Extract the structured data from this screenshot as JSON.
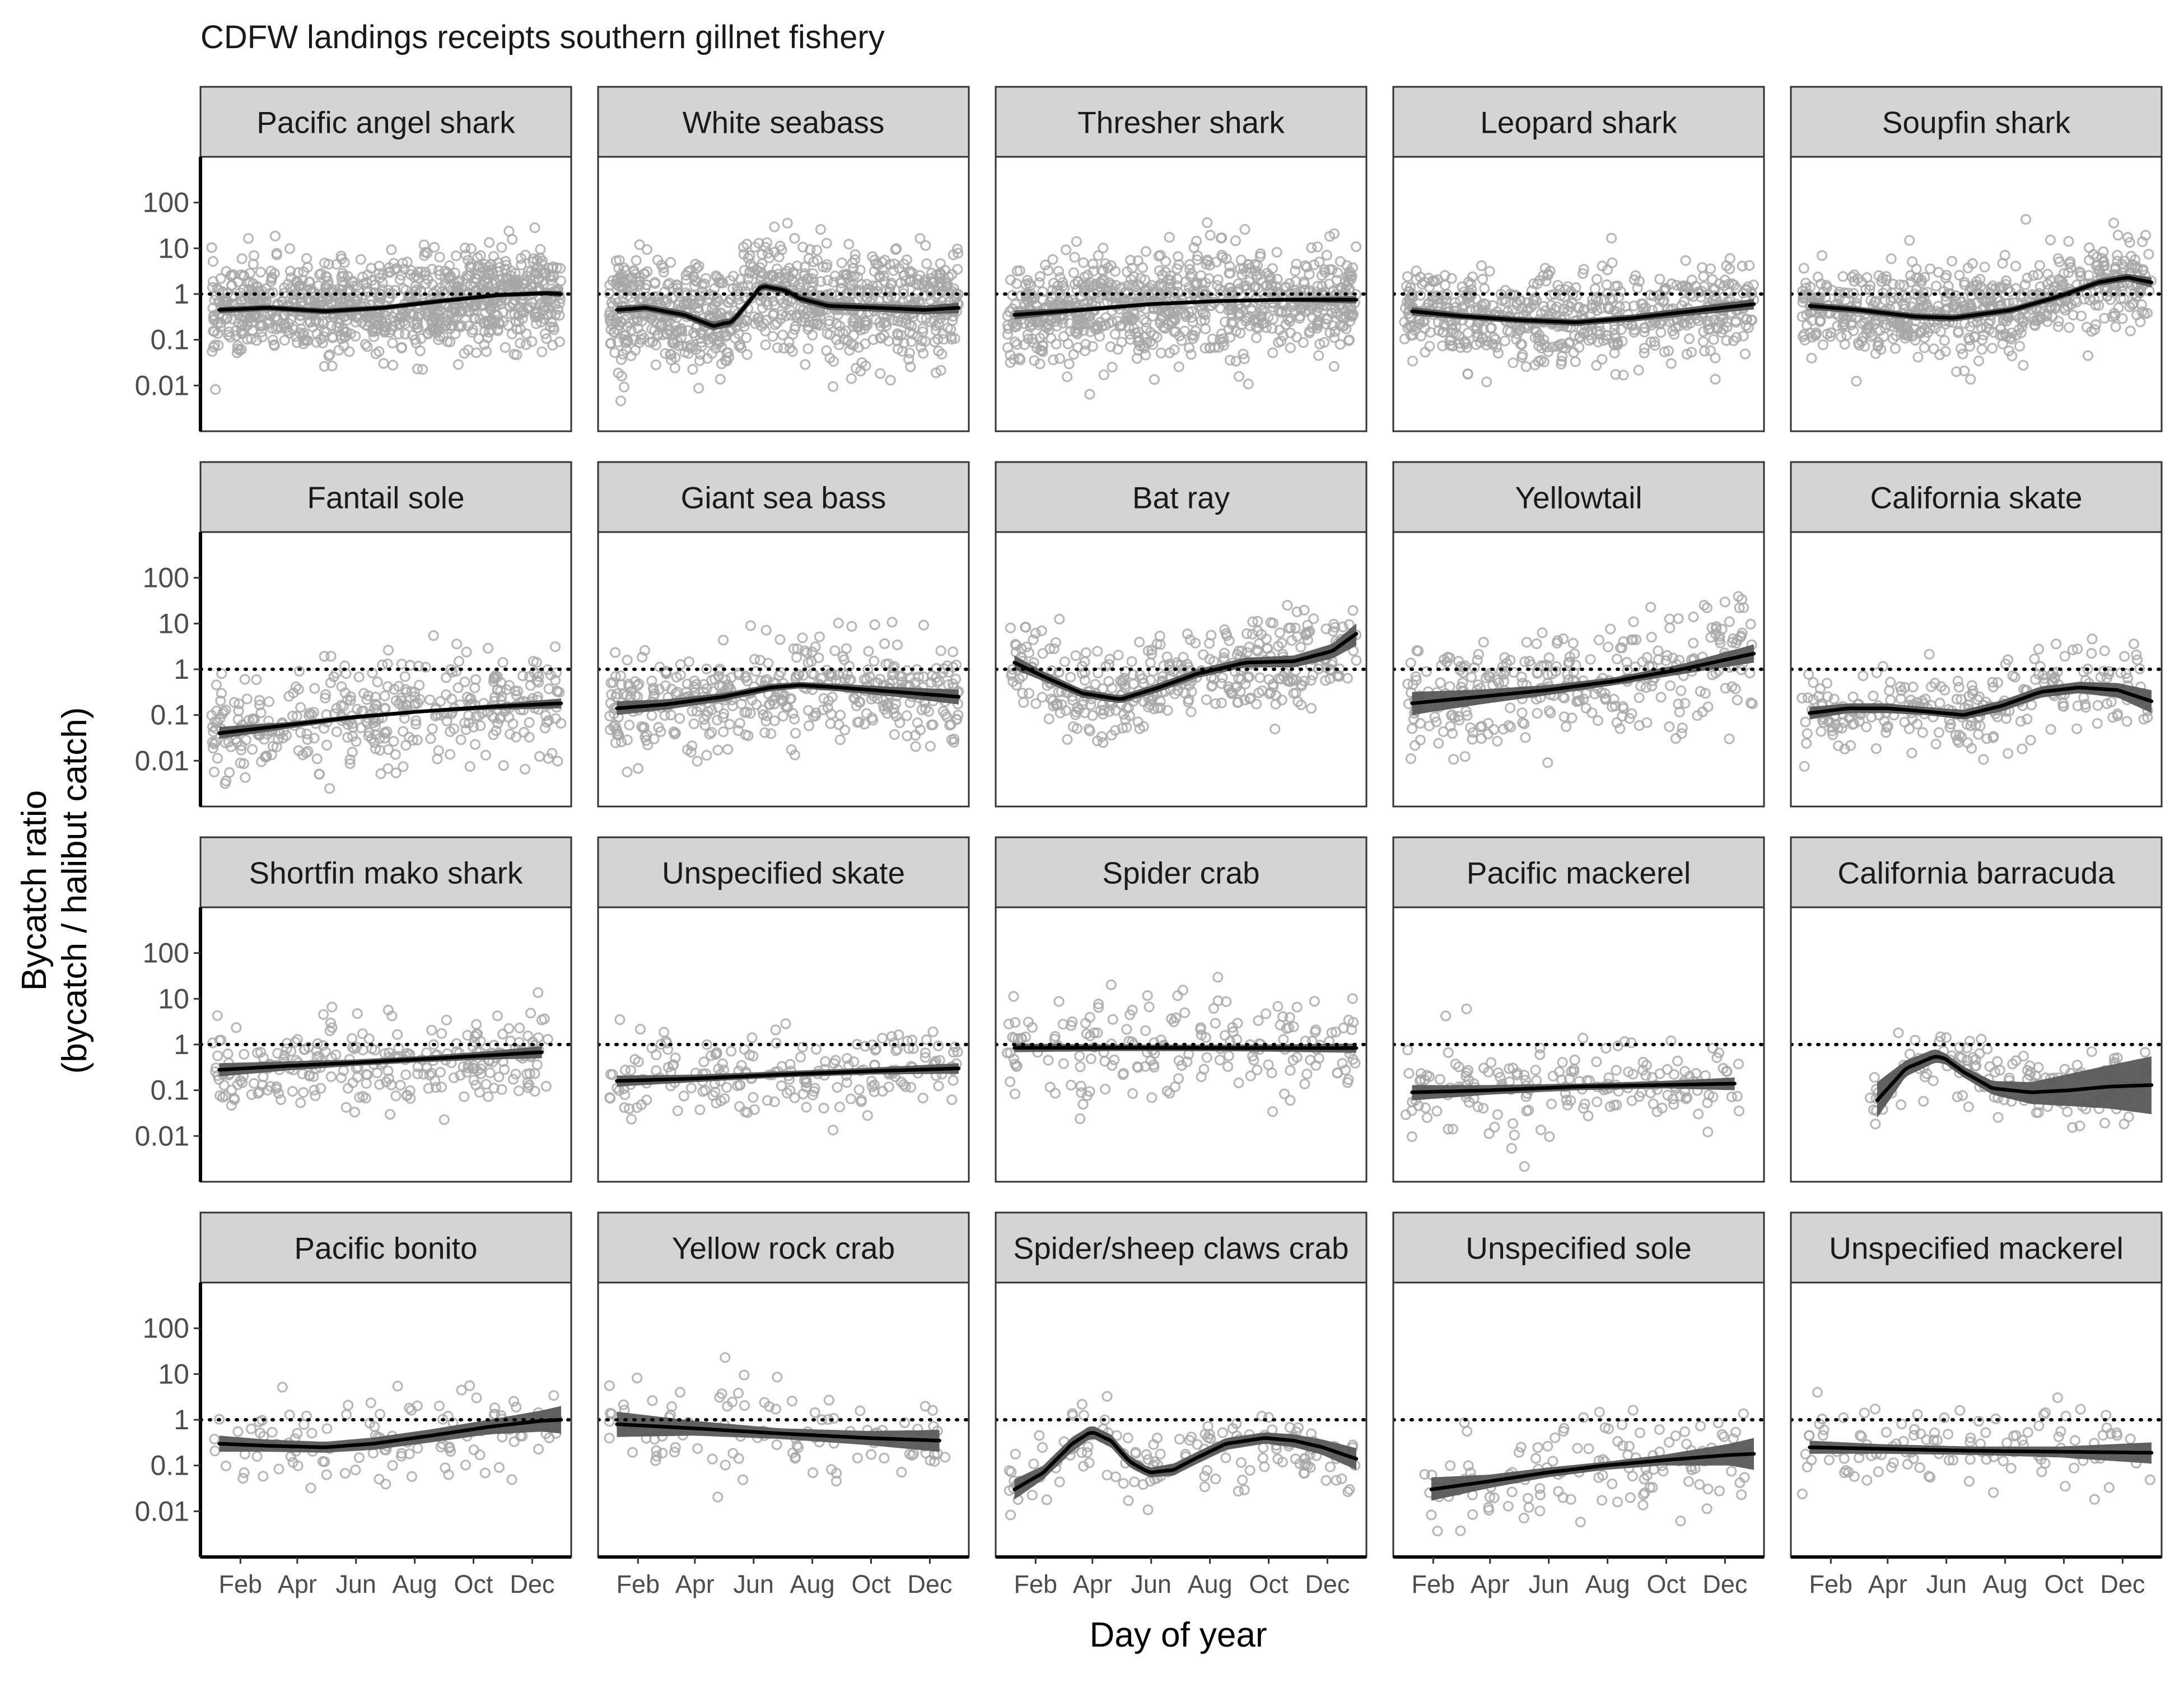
{
  "chart_data": {
    "type": "scatter",
    "title": "CDFW landings receipts southern gillnet fishery",
    "xlabel": "Day of year",
    "ylabel_lines": [
      "Bycatch ratio",
      "(bycatch / halibut catch)"
    ],
    "y_scale": "log10",
    "ylim": [
      0.001,
      1000
    ],
    "xlim": [
      1,
      365
    ],
    "y_ticks": [
      {
        "value": 100,
        "label": "100"
      },
      {
        "value": 10,
        "label": "10"
      },
      {
        "value": 1,
        "label": "1"
      },
      {
        "value": 0.1,
        "label": "0.1"
      },
      {
        "value": 0.01,
        "label": "0.01"
      }
    ],
    "x_ticks": [
      {
        "value": 32,
        "label": "Feb"
      },
      {
        "value": 91,
        "label": "Apr"
      },
      {
        "value": 152,
        "label": "Jun"
      },
      {
        "value": 213,
        "label": "Aug"
      },
      {
        "value": 274,
        "label": "Oct"
      },
      {
        "value": 335,
        "label": "Dec"
      }
    ],
    "reference_line": {
      "y": 1,
      "style": "dotted"
    },
    "grid": false,
    "colors": {
      "points": "#a6a6a6",
      "smooth_line": "#000000",
      "confidence_band": "#595959",
      "strip_fill": "#d4d4d4",
      "panel_border": "#333333"
    },
    "panels": [
      {
        "label": "Pacific angel shark",
        "density": 1000,
        "spread": 0.5,
        "fit_x": [
          10,
          60,
          120,
          180,
          240,
          300,
          350,
          365
        ],
        "fit_y": [
          0.45,
          0.5,
          0.42,
          0.5,
          0.7,
          0.95,
          1.05,
          1.0
        ],
        "fit_lo": [
          0.38,
          0.43,
          0.36,
          0.44,
          0.62,
          0.85,
          0.93,
          0.85
        ],
        "fit_hi": [
          0.52,
          0.58,
          0.49,
          0.57,
          0.8,
          1.06,
          1.18,
          1.17
        ]
      },
      {
        "label": "White seabass",
        "density": 900,
        "spread": 0.6,
        "fit_x": [
          10,
          40,
          80,
          110,
          130,
          150,
          160,
          185,
          200,
          230,
          280,
          330,
          365
        ],
        "fit_y": [
          0.45,
          0.5,
          0.35,
          0.2,
          0.25,
          0.8,
          1.5,
          1.2,
          0.8,
          0.55,
          0.5,
          0.45,
          0.5
        ],
        "fit_lo": [
          0.37,
          0.42,
          0.29,
          0.16,
          0.2,
          0.65,
          1.25,
          1.0,
          0.66,
          0.45,
          0.41,
          0.36,
          0.38
        ],
        "fit_hi": [
          0.55,
          0.6,
          0.43,
          0.25,
          0.31,
          0.98,
          1.8,
          1.45,
          0.97,
          0.67,
          0.61,
          0.56,
          0.65
        ]
      },
      {
        "label": "Thresher shark",
        "density": 850,
        "spread": 0.55,
        "fit_x": [
          10,
          80,
          150,
          220,
          290,
          365
        ],
        "fit_y": [
          0.35,
          0.45,
          0.6,
          0.7,
          0.75,
          0.75
        ],
        "fit_lo": [
          0.28,
          0.4,
          0.54,
          0.64,
          0.68,
          0.62
        ],
        "fit_hi": [
          0.44,
          0.51,
          0.66,
          0.77,
          0.83,
          0.9
        ]
      },
      {
        "label": "Leopard shark",
        "density": 600,
        "spread": 0.5,
        "fit_x": [
          10,
          60,
          120,
          180,
          240,
          300,
          365
        ],
        "fit_y": [
          0.42,
          0.33,
          0.27,
          0.24,
          0.3,
          0.42,
          0.6
        ],
        "fit_lo": [
          0.34,
          0.28,
          0.23,
          0.2,
          0.25,
          0.34,
          0.46
        ],
        "fit_hi": [
          0.52,
          0.39,
          0.32,
          0.28,
          0.36,
          0.52,
          0.78
        ]
      },
      {
        "label": "Soupfin shark",
        "density": 650,
        "spread": 0.5,
        "fit_x": [
          10,
          60,
          120,
          160,
          220,
          270,
          310,
          340,
          365
        ],
        "fit_y": [
          0.55,
          0.45,
          0.32,
          0.3,
          0.45,
          0.9,
          1.8,
          2.3,
          1.8
        ],
        "fit_lo": [
          0.45,
          0.38,
          0.27,
          0.25,
          0.38,
          0.76,
          1.5,
          1.9,
          1.4
        ],
        "fit_hi": [
          0.67,
          0.53,
          0.38,
          0.36,
          0.53,
          1.05,
          2.15,
          2.8,
          2.3
        ]
      },
      {
        "label": "Fantail sole",
        "density": 380,
        "spread": 0.55,
        "fit_x": [
          10,
          80,
          150,
          220,
          290,
          365
        ],
        "fit_y": [
          0.04,
          0.06,
          0.09,
          0.12,
          0.15,
          0.18
        ],
        "fit_lo": [
          0.03,
          0.05,
          0.08,
          0.11,
          0.13,
          0.14
        ],
        "fit_hi": [
          0.055,
          0.07,
          0.1,
          0.13,
          0.17,
          0.23
        ]
      },
      {
        "label": "Giant sea bass",
        "density": 420,
        "spread": 0.55,
        "fit_x": [
          10,
          60,
          120,
          170,
          200,
          240,
          300,
          365
        ],
        "fit_y": [
          0.14,
          0.17,
          0.25,
          0.4,
          0.45,
          0.4,
          0.32,
          0.25
        ],
        "fit_lo": [
          0.1,
          0.13,
          0.2,
          0.33,
          0.38,
          0.33,
          0.25,
          0.17
        ],
        "fit_hi": [
          0.2,
          0.22,
          0.3,
          0.48,
          0.53,
          0.48,
          0.41,
          0.36
        ]
      },
      {
        "label": "Bat ray",
        "density": 380,
        "spread": 0.5,
        "fit_x": [
          10,
          40,
          80,
          120,
          160,
          200,
          250,
          300,
          340,
          365
        ],
        "fit_y": [
          1.4,
          0.7,
          0.3,
          0.22,
          0.4,
          0.8,
          1.4,
          1.5,
          2.5,
          6
        ],
        "fit_lo": [
          1.0,
          0.55,
          0.24,
          0.18,
          0.32,
          0.65,
          1.1,
          1.1,
          1.7,
          3.3
        ],
        "fit_hi": [
          2.0,
          0.9,
          0.37,
          0.27,
          0.5,
          1.0,
          1.8,
          2.0,
          3.6,
          10
        ]
      },
      {
        "label": "Yellowtail",
        "density": 320,
        "spread": 0.6,
        "fit_x": [
          10,
          80,
          150,
          220,
          290,
          365
        ],
        "fit_y": [
          0.18,
          0.25,
          0.35,
          0.55,
          1.0,
          2.2
        ],
        "fit_lo": [
          0.1,
          0.17,
          0.27,
          0.45,
          0.78,
          1.4
        ],
        "fit_hi": [
          0.32,
          0.36,
          0.45,
          0.67,
          1.3,
          3.5
        ]
      },
      {
        "label": "California skate",
        "density": 260,
        "spread": 0.45,
        "fit_x": [
          10,
          50,
          90,
          130,
          170,
          210,
          250,
          290,
          330,
          365
        ],
        "fit_y": [
          0.11,
          0.14,
          0.14,
          0.12,
          0.1,
          0.16,
          0.32,
          0.4,
          0.35,
          0.2
        ],
        "fit_lo": [
          0.08,
          0.11,
          0.11,
          0.1,
          0.08,
          0.12,
          0.24,
          0.3,
          0.24,
          0.11
        ],
        "fit_hi": [
          0.15,
          0.18,
          0.18,
          0.15,
          0.13,
          0.21,
          0.42,
          0.53,
          0.5,
          0.35
        ]
      },
      {
        "label": "Shortfin mako shark",
        "density": 260,
        "spread": 0.5,
        "fit_x": [
          10,
          80,
          150,
          220,
          290,
          345
        ],
        "fit_y": [
          0.28,
          0.34,
          0.4,
          0.48,
          0.58,
          0.68
        ],
        "fit_lo": [
          0.2,
          0.27,
          0.34,
          0.41,
          0.47,
          0.5
        ],
        "fit_hi": [
          0.39,
          0.43,
          0.47,
          0.56,
          0.72,
          0.92
        ]
      },
      {
        "label": "Unspecified skate",
        "density": 200,
        "spread": 0.45,
        "fit_x": [
          10,
          90,
          180,
          270,
          365
        ],
        "fit_y": [
          0.16,
          0.18,
          0.22,
          0.26,
          0.3
        ],
        "fit_lo": [
          0.12,
          0.15,
          0.19,
          0.22,
          0.23
        ],
        "fit_hi": [
          0.21,
          0.22,
          0.26,
          0.31,
          0.39
        ]
      },
      {
        "label": "Spider crab",
        "density": 180,
        "spread": 0.55,
        "fit_x": [
          10,
          120,
          240,
          365
        ],
        "fit_y": [
          0.85,
          0.85,
          0.84,
          0.84
        ],
        "fit_lo": [
          0.68,
          0.72,
          0.71,
          0.66
        ],
        "fit_hi": [
          1.05,
          1.0,
          0.99,
          1.05
        ]
      },
      {
        "label": "Pacific mackerel",
        "density": 180,
        "spread": 0.5,
        "fit_x": [
          10,
          90,
          180,
          270,
          345
        ],
        "fit_y": [
          0.09,
          0.1,
          0.12,
          0.13,
          0.14
        ],
        "fit_lo": [
          0.06,
          0.08,
          0.1,
          0.11,
          0.1
        ],
        "fit_hi": [
          0.13,
          0.13,
          0.14,
          0.16,
          0.19
        ]
      },
      {
        "label": "California barracuda",
        "density": 150,
        "spread": 0.4,
        "fit_x": [
          80,
          110,
          140,
          150,
          170,
          200,
          240,
          280,
          320,
          365
        ],
        "fit_y": [
          0.06,
          0.3,
          0.55,
          0.5,
          0.25,
          0.11,
          0.09,
          0.1,
          0.12,
          0.13
        ],
        "fit_lo": [
          0.025,
          0.2,
          0.4,
          0.38,
          0.19,
          0.08,
          0.05,
          0.045,
          0.04,
          0.03
        ],
        "fit_hi": [
          0.15,
          0.45,
          0.8,
          0.66,
          0.33,
          0.16,
          0.15,
          0.23,
          0.35,
          0.55
        ]
      },
      {
        "label": "Pacific bonito",
        "density": 120,
        "spread": 0.5,
        "fit_x": [
          10,
          60,
          120,
          170,
          230,
          290,
          345,
          365
        ],
        "fit_y": [
          0.3,
          0.27,
          0.25,
          0.3,
          0.45,
          0.7,
          0.95,
          1.0
        ],
        "fit_lo": [
          0.2,
          0.2,
          0.19,
          0.22,
          0.32,
          0.48,
          0.55,
          0.5
        ],
        "fit_hi": [
          0.45,
          0.37,
          0.33,
          0.41,
          0.62,
          1.0,
          1.6,
          2.0
        ]
      },
      {
        "label": "Yellow rock crab",
        "density": 110,
        "spread": 0.5,
        "fit_x": [
          10,
          90,
          180,
          270,
          345
        ],
        "fit_y": [
          0.8,
          0.65,
          0.5,
          0.4,
          0.35
        ],
        "fit_lo": [
          0.42,
          0.45,
          0.38,
          0.28,
          0.2
        ],
        "fit_hi": [
          1.5,
          0.95,
          0.65,
          0.57,
          0.6
        ]
      },
      {
        "label": "Spider/sheep claws crab",
        "density": 150,
        "spread": 0.45,
        "fit_x": [
          10,
          40,
          70,
          90,
          110,
          130,
          150,
          175,
          200,
          230,
          270,
          300,
          330,
          365
        ],
        "fit_y": [
          0.03,
          0.07,
          0.3,
          0.55,
          0.35,
          0.12,
          0.07,
          0.08,
          0.15,
          0.3,
          0.4,
          0.35,
          0.25,
          0.14
        ],
        "fit_lo": [
          0.018,
          0.05,
          0.2,
          0.4,
          0.25,
          0.09,
          0.055,
          0.06,
          0.11,
          0.22,
          0.3,
          0.25,
          0.17,
          0.08
        ],
        "fit_hi": [
          0.05,
          0.1,
          0.42,
          0.76,
          0.48,
          0.16,
          0.09,
          0.11,
          0.2,
          0.4,
          0.53,
          0.48,
          0.37,
          0.24
        ]
      },
      {
        "label": "Unspecified sole",
        "density": 130,
        "spread": 0.5,
        "fit_x": [
          30,
          90,
          150,
          210,
          270,
          340,
          365
        ],
        "fit_y": [
          0.03,
          0.045,
          0.07,
          0.1,
          0.13,
          0.17,
          0.18
        ],
        "fit_lo": [
          0.017,
          0.032,
          0.055,
          0.08,
          0.1,
          0.1,
          0.08
        ],
        "fit_hi": [
          0.055,
          0.063,
          0.09,
          0.12,
          0.17,
          0.3,
          0.4
        ]
      },
      {
        "label": "Unspecified mackerel",
        "density": 120,
        "spread": 0.45,
        "fit_x": [
          10,
          90,
          180,
          270,
          365
        ],
        "fit_y": [
          0.25,
          0.23,
          0.21,
          0.2,
          0.19
        ],
        "fit_lo": [
          0.18,
          0.18,
          0.17,
          0.15,
          0.11
        ],
        "fit_hi": [
          0.35,
          0.29,
          0.26,
          0.26,
          0.32
        ]
      }
    ]
  }
}
